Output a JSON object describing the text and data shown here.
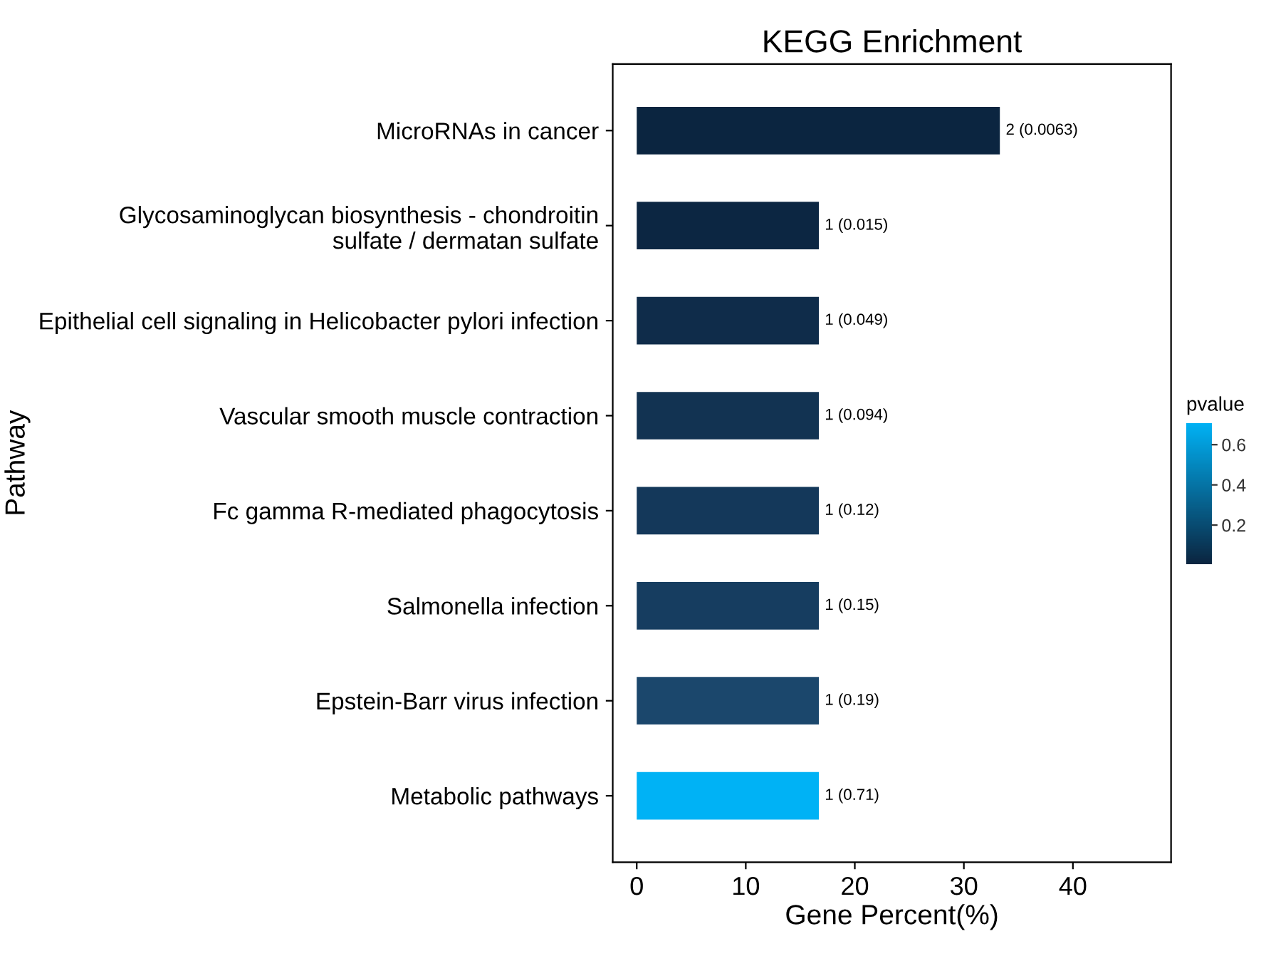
{
  "chart_data": {
    "type": "bar",
    "orientation": "horizontal",
    "title": "KEGG Enrichment",
    "xlabel": "Gene Percent(%)",
    "ylabel": "Pathway",
    "clabel": "pvalue",
    "categories": [
      "MicroRNAs in cancer",
      "Glycosaminoglycan biosynthesis - chondroitin\nsulfate / dermatan sulfate",
      "Epithelial cell signaling in Helicobacter pylori infection",
      "Vascular smooth muscle contraction",
      "Fc gamma R-mediated phagocytosis",
      "Salmonella infection",
      "Epstein-Barr virus infection",
      "Metabolic pathways"
    ],
    "values": [
      33.3,
      16.7,
      16.7,
      16.7,
      16.7,
      16.7,
      16.7,
      16.7
    ],
    "colors": [
      "#0b2540",
      "#0c2642",
      "#0f2c4a",
      "#123352",
      "#14385a",
      "#163d60",
      "#1b476c",
      "#00b2f5"
    ],
    "annotations": [
      "2 (0.0063)",
      "1 (0.015)",
      "1 (0.049)",
      "1 (0.094)",
      "1 (0.12)",
      "1 (0.15)",
      "1 (0.19)",
      "1 (0.71)"
    ],
    "xlim": [
      -2.2,
      49
    ],
    "xticks": [
      0,
      10,
      20,
      30,
      40
    ],
    "clim": [
      0.0063,
      0.71
    ],
    "cticks": [
      0.2,
      0.4,
      0.6
    ],
    "grid": false,
    "legend": false
  }
}
